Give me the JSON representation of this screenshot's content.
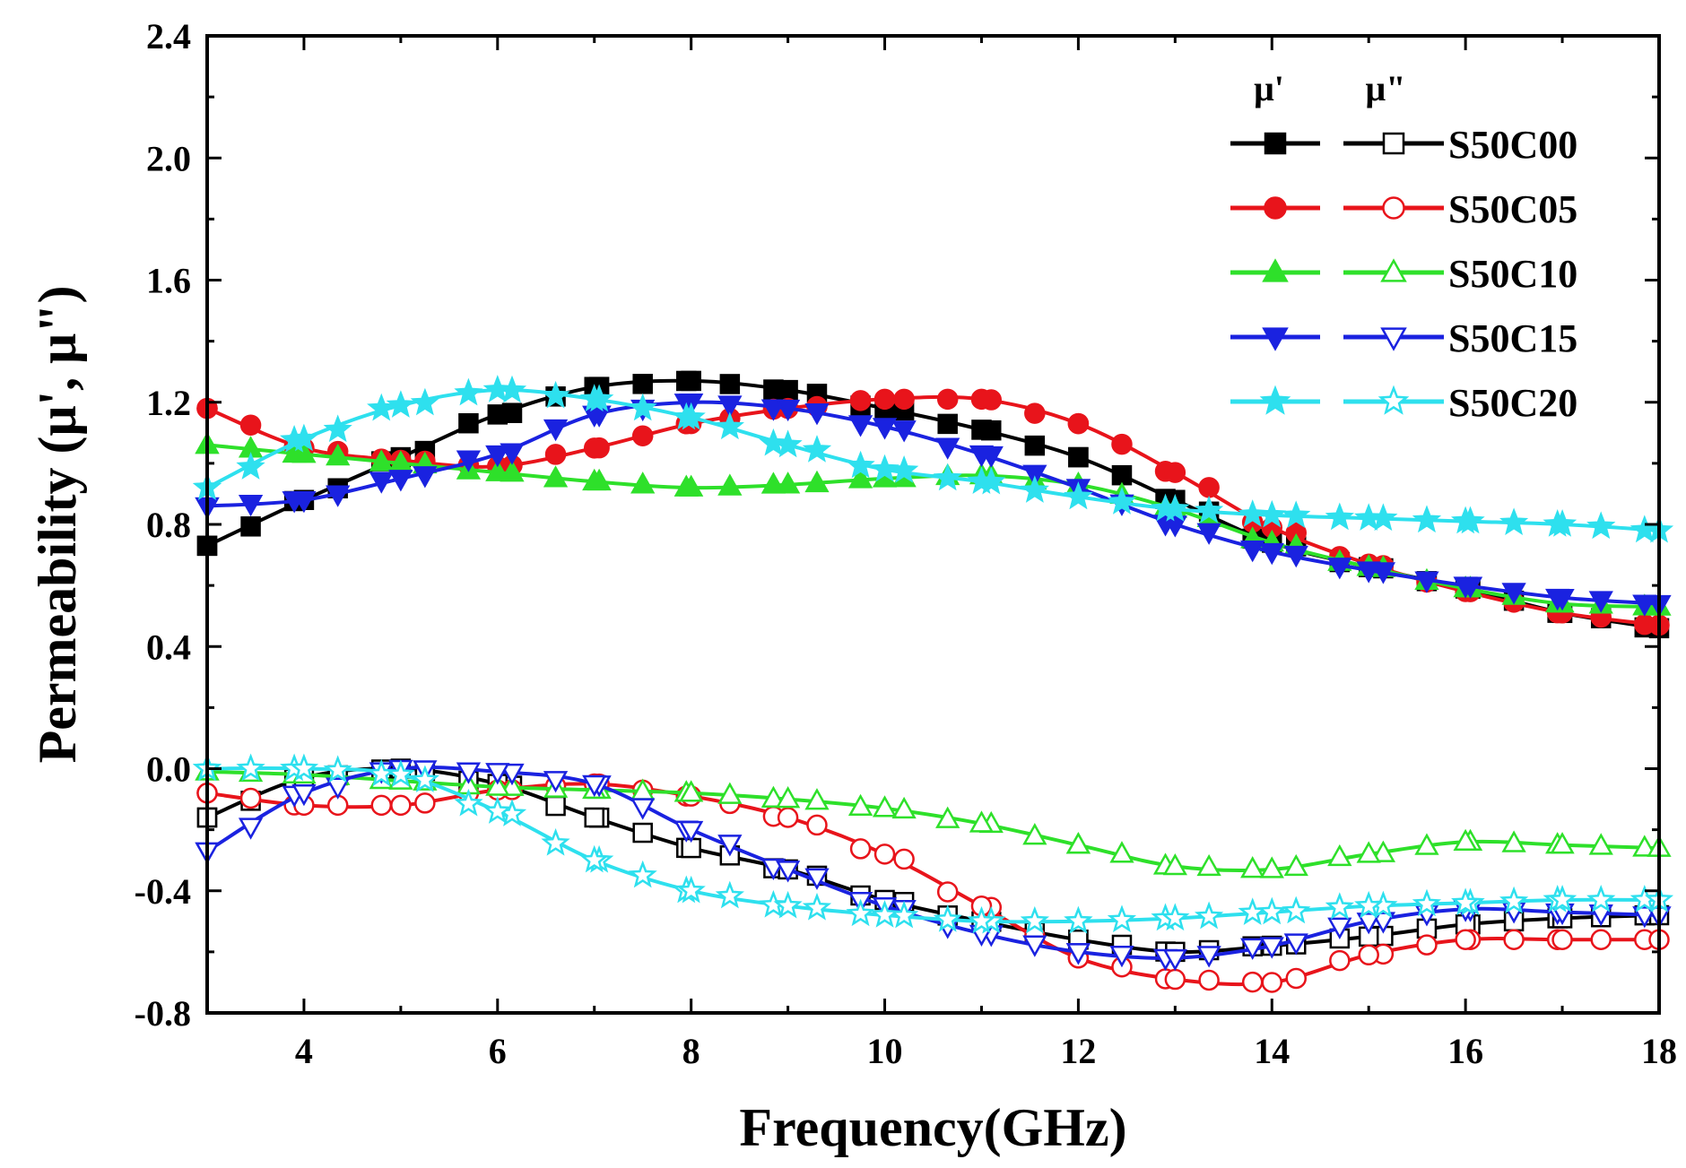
{
  "chart_data": {
    "type": "line",
    "xlabel": "Frequency(GHz)",
    "ylabel": "Permeability (μ', μ\")",
    "xlim": [
      3,
      18
    ],
    "ylim": [
      -0.8,
      2.4
    ],
    "xticks": [
      4,
      6,
      8,
      10,
      12,
      14,
      16,
      18
    ],
    "xtick_labels": [
      "4",
      "6",
      "8",
      "10",
      "12",
      "14",
      "16",
      "18"
    ],
    "yticks": [
      -0.8,
      -0.4,
      0.0,
      0.4,
      0.8,
      1.2,
      1.6,
      2.0,
      2.4
    ],
    "ytick_labels": [
      "-0.8",
      "-0.4",
      "0.0",
      "0.4",
      "0.8",
      "1.2",
      "1.6",
      "2.0",
      "2.4"
    ],
    "legend": {
      "position": "top-right",
      "col1_header": "μ'",
      "col2_header": "μ\""
    },
    "series": [
      {
        "name": "S50C00",
        "color": "#000000",
        "marker": "square",
        "real_x": [
          3,
          4,
          5,
          6,
          7,
          8,
          9,
          10,
          11,
          12,
          13,
          14,
          15,
          16,
          17,
          18
        ],
        "real": [
          0.73,
          0.88,
          1.02,
          1.16,
          1.25,
          1.27,
          1.24,
          1.18,
          1.11,
          1.02,
          0.88,
          0.74,
          0.66,
          0.59,
          0.51,
          0.46
        ],
        "imag_x": [
          3,
          4,
          5,
          6,
          7,
          8,
          9,
          10,
          11,
          12,
          13,
          14,
          15,
          16,
          17,
          18
        ],
        "imag": [
          -0.16,
          -0.03,
          0.0,
          -0.05,
          -0.16,
          -0.26,
          -0.33,
          -0.43,
          -0.5,
          -0.56,
          -0.6,
          -0.58,
          -0.55,
          -0.51,
          -0.49,
          -0.48
        ]
      },
      {
        "name": "S50C05",
        "color": "#e8141b",
        "marker": "circle",
        "real_x": [
          3,
          4,
          5,
          6,
          7,
          8,
          9,
          10,
          11,
          12,
          13,
          14,
          15,
          16,
          17,
          18
        ],
        "real": [
          1.18,
          1.05,
          1.01,
          0.99,
          1.05,
          1.13,
          1.18,
          1.21,
          1.21,
          1.13,
          0.97,
          0.79,
          0.67,
          0.58,
          0.51,
          0.47
        ],
        "imag_x": [
          3,
          4,
          5,
          6,
          7,
          8,
          9,
          10,
          11,
          12,
          13,
          14,
          15,
          16,
          17,
          18
        ],
        "imag": [
          -0.08,
          -0.12,
          -0.12,
          -0.07,
          -0.05,
          -0.09,
          -0.16,
          -0.28,
          -0.45,
          -0.62,
          -0.69,
          -0.7,
          -0.61,
          -0.56,
          -0.56,
          -0.56
        ]
      },
      {
        "name": "S50C10",
        "color": "#2ee02a",
        "marker": "triangle-up",
        "real_x": [
          3,
          4,
          5,
          6,
          7,
          8,
          9,
          10,
          11,
          12,
          13,
          14,
          15,
          16,
          17,
          18
        ],
        "real": [
          1.06,
          1.03,
          1.0,
          0.97,
          0.94,
          0.92,
          0.93,
          0.95,
          0.96,
          0.93,
          0.85,
          0.74,
          0.66,
          0.59,
          0.54,
          0.53
        ],
        "imag_x": [
          3,
          4,
          5,
          6,
          7,
          8,
          9,
          10,
          11,
          12,
          13,
          14,
          15,
          16,
          17,
          18
        ],
        "imag": [
          -0.01,
          -0.02,
          -0.04,
          -0.06,
          -0.07,
          -0.08,
          -0.1,
          -0.13,
          -0.18,
          -0.25,
          -0.32,
          -0.33,
          -0.28,
          -0.24,
          -0.25,
          -0.26
        ]
      },
      {
        "name": "S50C15",
        "color": "#1a22e0",
        "marker": "triangle-down",
        "real_x": [
          3,
          4,
          5,
          6,
          7,
          8,
          9,
          10,
          11,
          12,
          13,
          14,
          15,
          16,
          17,
          18
        ],
        "real": [
          0.86,
          0.88,
          0.95,
          1.03,
          1.16,
          1.2,
          1.18,
          1.12,
          1.03,
          0.92,
          0.8,
          0.71,
          0.65,
          0.6,
          0.56,
          0.54
        ],
        "imag_x": [
          3,
          4,
          5,
          6,
          7,
          8,
          9,
          10,
          11,
          12,
          13,
          14,
          15,
          16,
          17,
          18
        ],
        "imag": [
          -0.27,
          -0.08,
          0.0,
          -0.01,
          -0.05,
          -0.2,
          -0.33,
          -0.45,
          -0.54,
          -0.6,
          -0.62,
          -0.58,
          -0.5,
          -0.46,
          -0.47,
          -0.48
        ]
      },
      {
        "name": "S50C20",
        "color": "#2ee0ee",
        "marker": "star",
        "real_x": [
          3,
          4,
          5,
          6,
          7,
          8,
          9,
          10,
          11,
          12,
          13,
          14,
          15,
          16,
          17,
          18
        ],
        "real": [
          0.92,
          1.08,
          1.19,
          1.24,
          1.21,
          1.15,
          1.06,
          0.98,
          0.94,
          0.89,
          0.85,
          0.83,
          0.82,
          0.81,
          0.8,
          0.78
        ],
        "imag_x": [
          3,
          4,
          5,
          6,
          7,
          8,
          9,
          10,
          11,
          12,
          13,
          14,
          15,
          16,
          17,
          18
        ],
        "imag": [
          0.0,
          0.0,
          -0.02,
          -0.14,
          -0.3,
          -0.4,
          -0.45,
          -0.48,
          -0.5,
          -0.5,
          -0.49,
          -0.47,
          -0.45,
          -0.44,
          -0.43,
          -0.43
        ]
      }
    ]
  }
}
